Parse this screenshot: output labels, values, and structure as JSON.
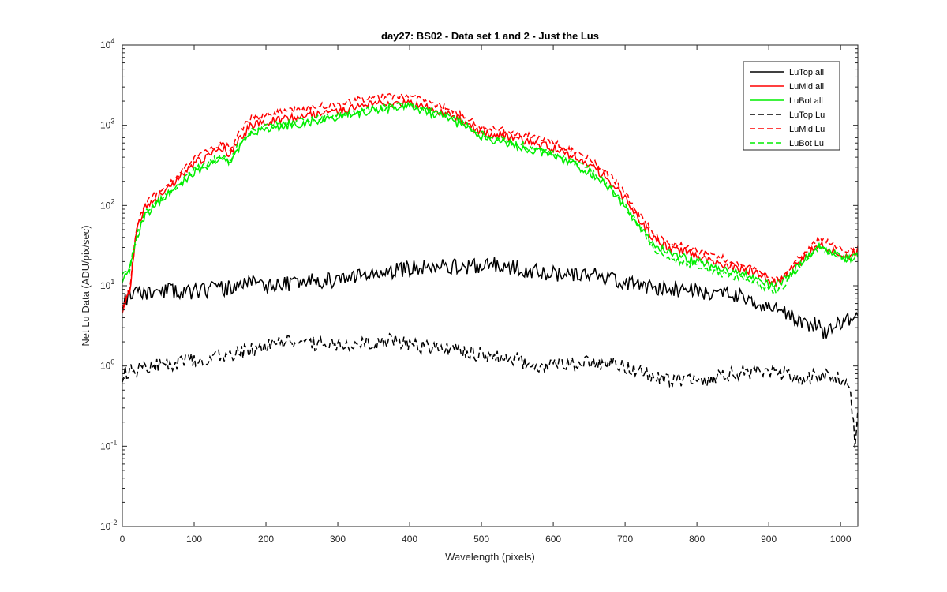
{
  "chart_data": {
    "type": "line",
    "title": "day27: BS02 - Data set 1 and 2 - Just the Lus",
    "xlabel": "Wavelength (pixels)",
    "ylabel": "Net Lu Data (ADU/pix/sec)",
    "xlim": [
      0,
      1024
    ],
    "ylim": [
      0.01,
      10000
    ],
    "yscale": "log",
    "x_ticks": [
      0,
      100,
      200,
      300,
      400,
      500,
      600,
      700,
      800,
      900,
      1000
    ],
    "x_tick_labels": [
      "0",
      "100",
      "200",
      "300",
      "400",
      "500",
      "600",
      "700",
      "800",
      "900",
      "1000"
    ],
    "y_ticks": [
      0.01,
      0.1,
      1,
      10,
      100,
      1000,
      10000
    ],
    "y_tick_labels": [
      {
        "base": "10",
        "exp": "-2"
      },
      {
        "base": "10",
        "exp": "-1"
      },
      {
        "base": "10",
        "exp": "0"
      },
      {
        "base": "10",
        "exp": "1"
      },
      {
        "base": "10",
        "exp": "2"
      },
      {
        "base": "10",
        "exp": "3"
      },
      {
        "base": "10",
        "exp": "4"
      }
    ],
    "grid": false,
    "legend_position": "top-right",
    "series": [
      {
        "name": "LuTop  all",
        "color": "#000000",
        "dash": "solid",
        "noise": 0.1,
        "seed": 11,
        "x": [
          0,
          5,
          15,
          30,
          60,
          100,
          150,
          180,
          200,
          250,
          300,
          350,
          400,
          430,
          480,
          520,
          560,
          600,
          650,
          700,
          740,
          800,
          850,
          870,
          880,
          890,
          900,
          920,
          950,
          970,
          980,
          990,
          1000,
          1024
        ],
        "y": [
          6.0,
          7.0,
          7.6,
          8.0,
          8.5,
          8.5,
          9.5,
          11.5,
          10.0,
          11.0,
          12.0,
          14.0,
          16.5,
          18.0,
          17.0,
          18.5,
          16.0,
          14.0,
          14.0,
          11.0,
          9.5,
          8.5,
          7.5,
          7.0,
          6.5,
          6.0,
          5.5,
          4.5,
          3.5,
          3.2,
          2.5,
          2.8,
          3.5,
          4.0
        ]
      },
      {
        "name": "LuMid  all",
        "color": "#ff0000",
        "dash": "solid",
        "noise": 0.05,
        "seed": 23,
        "x": [
          0,
          10,
          15,
          20,
          30,
          40,
          60,
          80,
          100,
          120,
          140,
          150,
          160,
          180,
          200,
          250,
          300,
          350,
          400,
          420,
          450,
          480,
          500,
          520,
          600,
          650,
          680,
          700,
          720,
          740,
          760,
          800,
          850,
          880,
          900,
          910,
          920,
          940,
          960,
          970,
          990,
          1010,
          1024
        ],
        "y": [
          5.0,
          8.0,
          20.0,
          50.0,
          90.0,
          110.0,
          150.0,
          220.0,
          330.0,
          420.0,
          520.0,
          430.0,
          650.0,
          1000.0,
          1100.0,
          1300.0,
          1500.0,
          1850.0,
          1900.0,
          1700.0,
          1400.0,
          1050.0,
          800.0,
          780.0,
          520.0,
          320.0,
          200.0,
          120.0,
          65.0,
          38.0,
          30.0,
          24.0,
          17.0,
          15.0,
          12.0,
          11.0,
          12.0,
          18.0,
          28.0,
          33.0,
          28.0,
          23.0,
          28.0
        ]
      },
      {
        "name": "LuBot  all",
        "color": "#00ee00",
        "dash": "solid",
        "noise": 0.05,
        "seed": 37,
        "x": [
          0,
          10,
          15,
          20,
          30,
          40,
          60,
          80,
          100,
          120,
          140,
          150,
          160,
          180,
          200,
          250,
          300,
          350,
          400,
          420,
          450,
          480,
          500,
          520,
          600,
          650,
          680,
          700,
          720,
          740,
          760,
          800,
          850,
          880,
          900,
          910,
          920,
          940,
          960,
          970,
          990,
          1010,
          1024
        ],
        "y": [
          12.0,
          15.0,
          25.0,
          40.0,
          70.0,
          90.0,
          130.0,
          180.0,
          260.0,
          320.0,
          400.0,
          320.0,
          500.0,
          780.0,
          900.0,
          1050.0,
          1250.0,
          1550.0,
          1700.0,
          1500.0,
          1250.0,
          900.0,
          720.0,
          650.0,
          420.0,
          260.0,
          160.0,
          95.0,
          55.0,
          33.0,
          26.0,
          20.0,
          15.0,
          13.0,
          10.5,
          10.0,
          11.5,
          17.0,
          26.0,
          31.0,
          26.0,
          21.0,
          25.0
        ]
      },
      {
        "name": "LuTop  Lu",
        "color": "#000000",
        "dash": "dashed",
        "noise": 0.09,
        "seed": 53,
        "x": [
          0,
          5,
          20,
          50,
          100,
          150,
          200,
          220,
          250,
          300,
          350,
          370,
          400,
          450,
          500,
          550,
          580,
          600,
          650,
          700,
          750,
          800,
          850,
          900,
          930,
          950,
          980,
          990,
          1000,
          1010,
          1015,
          1020,
          1024
        ],
        "y": [
          0.7,
          0.85,
          0.9,
          1.0,
          1.2,
          1.4,
          1.8,
          2.0,
          1.9,
          1.9,
          1.9,
          2.1,
          1.8,
          1.6,
          1.4,
          1.2,
          0.9,
          1.0,
          1.1,
          1.0,
          0.7,
          0.65,
          0.8,
          0.9,
          0.75,
          0.7,
          0.8,
          0.7,
          0.7,
          0.65,
          0.4,
          0.1,
          0.25
        ]
      },
      {
        "name": "LuMid  Lu",
        "color": "#ff0000",
        "dash": "dashed",
        "noise": 0.04,
        "seed": 71,
        "x": [
          0,
          10,
          15,
          20,
          30,
          40,
          60,
          80,
          100,
          120,
          140,
          150,
          160,
          180,
          200,
          250,
          300,
          350,
          400,
          420,
          450,
          480,
          500,
          520,
          600,
          650,
          680,
          700,
          720,
          740,
          760,
          800,
          850,
          880,
          900,
          910,
          920,
          940,
          960,
          970,
          990,
          1010,
          1024
        ],
        "y": [
          5.5,
          9.0,
          22.0,
          55.0,
          100.0,
          125.0,
          170.0,
          250.0,
          380.0,
          480.0,
          600.0,
          500.0,
          750.0,
          1250.0,
          1350.0,
          1600.0,
          1850.0,
          2250.0,
          2300.0,
          2050.0,
          1650.0,
          1250.0,
          950.0,
          920.0,
          620.0,
          380.0,
          240.0,
          140.0,
          75.0,
          45.0,
          35.0,
          28.0,
          20.0,
          17.0,
          13.0,
          12.0,
          13.0,
          21.0,
          33.0,
          40.0,
          32.0,
          26.0,
          30.0
        ]
      },
      {
        "name": "LuBot  Lu",
        "color": "#00ee00",
        "dash": "dashed",
        "noise": 0.04,
        "seed": 89,
        "x": [
          0,
          10,
          15,
          20,
          30,
          40,
          60,
          80,
          100,
          120,
          140,
          150,
          160,
          180,
          200,
          250,
          300,
          350,
          400,
          420,
          450,
          480,
          500,
          520,
          600,
          650,
          680,
          700,
          720,
          740,
          760,
          800,
          850,
          880,
          900,
          910,
          920,
          940,
          960,
          970,
          990,
          1010,
          1024
        ],
        "y": [
          13.0,
          16.0,
          27.0,
          42.0,
          75.0,
          95.0,
          135.0,
          190.0,
          280.0,
          340.0,
          420.0,
          340.0,
          530.0,
          850.0,
          970.0,
          1150.0,
          1350.0,
          1650.0,
          1800.0,
          1600.0,
          1350.0,
          980.0,
          780.0,
          700.0,
          450.0,
          280.0,
          170.0,
          100.0,
          55.0,
          28.0,
          22.0,
          17.0,
          13.0,
          11.0,
          9.0,
          8.5,
          10.0,
          16.0,
          25.0,
          30.0,
          25.0,
          20.0,
          24.0
        ]
      }
    ]
  }
}
